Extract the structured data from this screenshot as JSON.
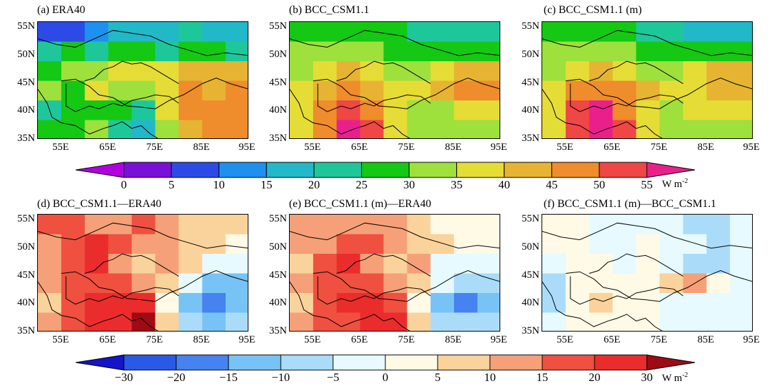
{
  "figure": {
    "xticks": [
      "55E",
      "65E",
      "75E",
      "85E",
      "95E"
    ],
    "yticks": [
      "55N",
      "50N",
      "45N",
      "40N",
      "35N"
    ]
  },
  "panels_top": [
    {
      "title": "(a)  ERA40"
    },
    {
      "title": "(b)  BCC_CSM1.1"
    },
    {
      "title": "(c)  BCC_CSM1.1 (m)"
    }
  ],
  "panels_bottom": [
    {
      "title": "(d)  BCC_CSM1.1—ERA40"
    },
    {
      "title": "(e)  BCC_CSM1.1 (m)—ERA40"
    },
    {
      "title": "(f)  BCC_CSM1.1 (m)—BCC_CSM1.1"
    }
  ],
  "colorbar_top": {
    "labels": [
      "0",
      "5",
      "10",
      "15",
      "20",
      "25",
      "30",
      "35",
      "40",
      "45",
      "50",
      "55"
    ],
    "unit": "W m",
    "unit_exp": "-2",
    "colors": [
      "#b000e0",
      "#7a10d8",
      "#2c4be6",
      "#1e90ef",
      "#22b8c8",
      "#1ec79a",
      "#14c814",
      "#9ee03c",
      "#e6dc36",
      "#e6b432",
      "#ef8c2c",
      "#ef4646",
      "#eb1f8c"
    ]
  },
  "colorbar_bottom": {
    "labels": [
      "-30",
      "-20",
      "-15",
      "-10",
      "-5",
      "0",
      "5",
      "10",
      "15",
      "20",
      "30"
    ],
    "unit": "W m",
    "unit_exp": "-2",
    "colors": [
      "#1414c8",
      "#285ae6",
      "#4682f0",
      "#78c3f5",
      "#aadcfa",
      "#e6faff",
      "#fffae6",
      "#fad29b",
      "#f5a078",
      "#ef5040",
      "#eb2c2c",
      "#a00a14"
    ]
  },
  "chart_data": [
    {
      "type": "heatmap",
      "panel": "a",
      "variable": "ERA40",
      "xlim": [
        50,
        95
      ],
      "ylim": [
        35,
        56
      ],
      "grid": [
        [
          5,
          5,
          10,
          15,
          15,
          15,
          20,
          15,
          15
        ],
        [
          20,
          25,
          20,
          25,
          25,
          20,
          25,
          25,
          20
        ],
        [
          25,
          30,
          30,
          35,
          35,
          35,
          40,
          40,
          40
        ],
        [
          30,
          25,
          35,
          30,
          30,
          35,
          45,
          40,
          45
        ],
        [
          20,
          25,
          25,
          25,
          20,
          35,
          45,
          45,
          45
        ],
        [
          25,
          25,
          30,
          20,
          15,
          30,
          40,
          45,
          45
        ]
      ]
    },
    {
      "type": "heatmap",
      "panel": "b",
      "variable": "BCC_CSM1.1",
      "xlim": [
        50,
        95
      ],
      "ylim": [
        35,
        56
      ],
      "grid": [
        [
          25,
          25,
          25,
          25,
          25,
          20,
          20,
          20,
          20
        ],
        [
          30,
          30,
          30,
          30,
          25,
          25,
          25,
          25,
          25
        ],
        [
          30,
          35,
          40,
          35,
          30,
          30,
          35,
          40,
          40
        ],
        [
          35,
          40,
          45,
          40,
          35,
          35,
          40,
          45,
          45
        ],
        [
          35,
          45,
          50,
          45,
          35,
          30,
          30,
          35,
          35
        ],
        [
          35,
          45,
          55,
          50,
          35,
          30,
          30,
          30,
          30
        ]
      ]
    },
    {
      "type": "heatmap",
      "panel": "c",
      "variable": "BCC_CSM1.1 (m)",
      "xlim": [
        50,
        95
      ],
      "ylim": [
        35,
        56
      ],
      "grid": [
        [
          25,
          25,
          25,
          25,
          20,
          20,
          15,
          15,
          15
        ],
        [
          30,
          30,
          30,
          30,
          25,
          25,
          25,
          25,
          25
        ],
        [
          30,
          35,
          40,
          35,
          30,
          30,
          35,
          40,
          40
        ],
        [
          35,
          45,
          45,
          45,
          40,
          35,
          35,
          40,
          40
        ],
        [
          35,
          50,
          55,
          45,
          35,
          30,
          35,
          35,
          35
        ],
        [
          35,
          50,
          55,
          50,
          35,
          30,
          30,
          30,
          30
        ]
      ]
    },
    {
      "type": "heatmap",
      "panel": "d",
      "variable": "BCC_CSM1.1-ERA40",
      "xlim": [
        50,
        95
      ],
      "ylim": [
        35,
        56
      ],
      "grid": [
        [
          15,
          15,
          10,
          10,
          15,
          10,
          5,
          5,
          5
        ],
        [
          10,
          15,
          20,
          15,
          10,
          10,
          5,
          5,
          0
        ],
        [
          10,
          15,
          20,
          10,
          5,
          10,
          5,
          -5,
          -5
        ],
        [
          10,
          15,
          15,
          15,
          10,
          5,
          -5,
          -15,
          -15
        ],
        [
          5,
          15,
          20,
          20,
          20,
          0,
          -15,
          -20,
          -15
        ],
        [
          10,
          15,
          20,
          25,
          30,
          5,
          -10,
          -15,
          -10
        ]
      ]
    },
    {
      "type": "heatmap",
      "panel": "e",
      "variable": "BCC_CSM1.1 (m)-ERA40",
      "xlim": [
        50,
        95
      ],
      "ylim": [
        35,
        56
      ],
      "grid": [
        [
          10,
          10,
          10,
          10,
          10,
          5,
          0,
          0,
          0
        ],
        [
          10,
          10,
          15,
          15,
          10,
          5,
          5,
          0,
          0
        ],
        [
          5,
          15,
          20,
          10,
          5,
          10,
          -5,
          -5,
          -5
        ],
        [
          10,
          15,
          15,
          15,
          10,
          5,
          -5,
          -10,
          -10
        ],
        [
          5,
          15,
          20,
          20,
          15,
          0,
          -15,
          -20,
          -15
        ],
        [
          10,
          15,
          15,
          20,
          20,
          5,
          -10,
          -10,
          -10
        ]
      ]
    },
    {
      "type": "heatmap",
      "panel": "f",
      "variable": "BCC_CSM1.1 (m)-BCC_CSM1.1",
      "xlim": [
        50,
        95
      ],
      "ylim": [
        35,
        56
      ],
      "grid": [
        [
          0,
          0,
          -5,
          -5,
          -5,
          -5,
          -10,
          -10,
          -5
        ],
        [
          0,
          0,
          -5,
          -5,
          0,
          -5,
          -5,
          -10,
          -5
        ],
        [
          -5,
          0,
          0,
          -5,
          0,
          -5,
          -10,
          -10,
          -5
        ],
        [
          -10,
          0,
          0,
          0,
          0,
          5,
          10,
          0,
          -5
        ],
        [
          -10,
          0,
          5,
          0,
          0,
          -5,
          -5,
          -5,
          -5
        ],
        [
          -5,
          0,
          0,
          0,
          0,
          -5,
          -5,
          -5,
          -5
        ]
      ]
    }
  ]
}
